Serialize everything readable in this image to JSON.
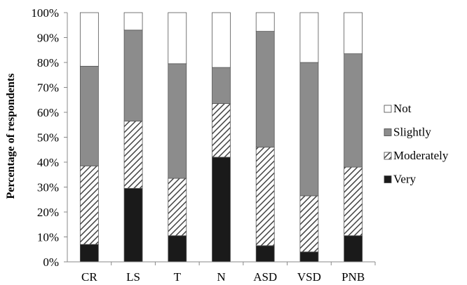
{
  "chart_data": {
    "type": "bar",
    "stacked": true,
    "percent": true,
    "ylabel": "Percentage of respondents",
    "xlabel": "",
    "ylim": [
      0,
      100
    ],
    "yticks": [
      "0%",
      "10%",
      "20%",
      "30%",
      "40%",
      "50%",
      "60%",
      "70%",
      "80%",
      "90%",
      "100%"
    ],
    "grid": false,
    "legend_position": "right",
    "categories": [
      "CR",
      "LS",
      "T",
      "N",
      "ASD",
      "VSD",
      "PNB"
    ],
    "series": [
      {
        "name": "Very",
        "fill": "solid",
        "color": "#1a1a1a",
        "values": [
          7,
          29.5,
          10.5,
          42,
          6.5,
          4,
          10.5
        ]
      },
      {
        "name": "Moderately",
        "fill": "diagonal-hatch",
        "color": "#444444",
        "values": [
          31.5,
          27,
          23,
          21.5,
          39.5,
          22.5,
          27.5
        ]
      },
      {
        "name": "Slightly",
        "fill": "solid",
        "color": "#8c8c8c",
        "values": [
          40,
          36.5,
          46,
          14.5,
          46.5,
          53.5,
          45.5
        ]
      },
      {
        "name": "Not",
        "fill": "solid",
        "color": "#ffffff",
        "values": [
          21.5,
          7,
          20.5,
          22,
          7.5,
          20,
          16.5
        ]
      }
    ],
    "legend_order": [
      "Not",
      "Slightly",
      "Moderately",
      "Very"
    ]
  }
}
